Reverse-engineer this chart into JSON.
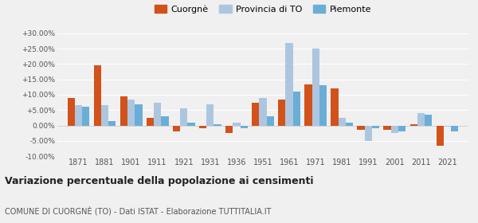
{
  "years": [
    1871,
    1881,
    1901,
    1911,
    1921,
    1931,
    1936,
    1951,
    1961,
    1971,
    1981,
    1991,
    2001,
    2011,
    2021
  ],
  "cuorgne": [
    9.0,
    19.5,
    9.5,
    2.5,
    -2.0,
    -1.0,
    -2.5,
    7.5,
    8.5,
    13.5,
    12.0,
    -1.5,
    -1.5,
    0.5,
    -6.5
  ],
  "provincia_to": [
    6.5,
    6.5,
    8.5,
    7.5,
    5.5,
    7.0,
    1.0,
    9.0,
    27.0,
    25.0,
    2.5,
    -5.0,
    -2.5,
    4.0,
    -0.5
  ],
  "piemonte": [
    6.0,
    1.5,
    7.0,
    3.0,
    1.0,
    0.5,
    -1.0,
    3.0,
    11.0,
    13.0,
    1.0,
    -1.0,
    -2.0,
    3.5,
    -2.0
  ],
  "color_cuorgne": "#d2521a",
  "color_provincia": "#adc6e0",
  "color_piemonte": "#6aaed6",
  "title": "Variazione percentuale della popolazione ai censimenti",
  "subtitle": "COMUNE DI CUORGNÈ (TO) - Dati ISTAT - Elaborazione TUTTITALIA.IT",
  "ylim": [
    -10.0,
    30.0
  ],
  "yticks": [
    -10.0,
    -5.0,
    0.0,
    5.0,
    10.0,
    15.0,
    20.0,
    25.0,
    30.0
  ],
  "background_color": "#f0f0f0"
}
